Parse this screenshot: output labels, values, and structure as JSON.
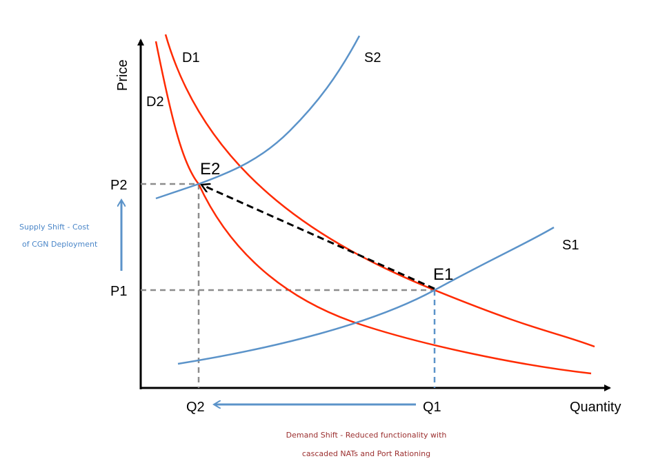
{
  "axes": {
    "y_label": "Price",
    "x_label": "Quantity"
  },
  "curves": {
    "d1": "D1",
    "d2": "D2",
    "s1": "S1",
    "s2": "S2"
  },
  "points": {
    "e1": "E1",
    "e2": "E2"
  },
  "ticks": {
    "p1": "P1",
    "p2": "P2",
    "q1": "Q1",
    "q2": "Q2"
  },
  "notes": {
    "supply_line1": "Supply Shift - Cost",
    "supply_line2": "of CGN Deployment",
    "demand_line1": "Demand Shift - Reduced functionality with",
    "demand_line2": "cascaded NATs and Port Rationing"
  },
  "colors": {
    "demand": "#ff2a00",
    "supply": "#5b93c9",
    "guide": "#8c8c8c",
    "supply_note": "#4a86c8",
    "demand_note": "#9b2f2f"
  }
}
